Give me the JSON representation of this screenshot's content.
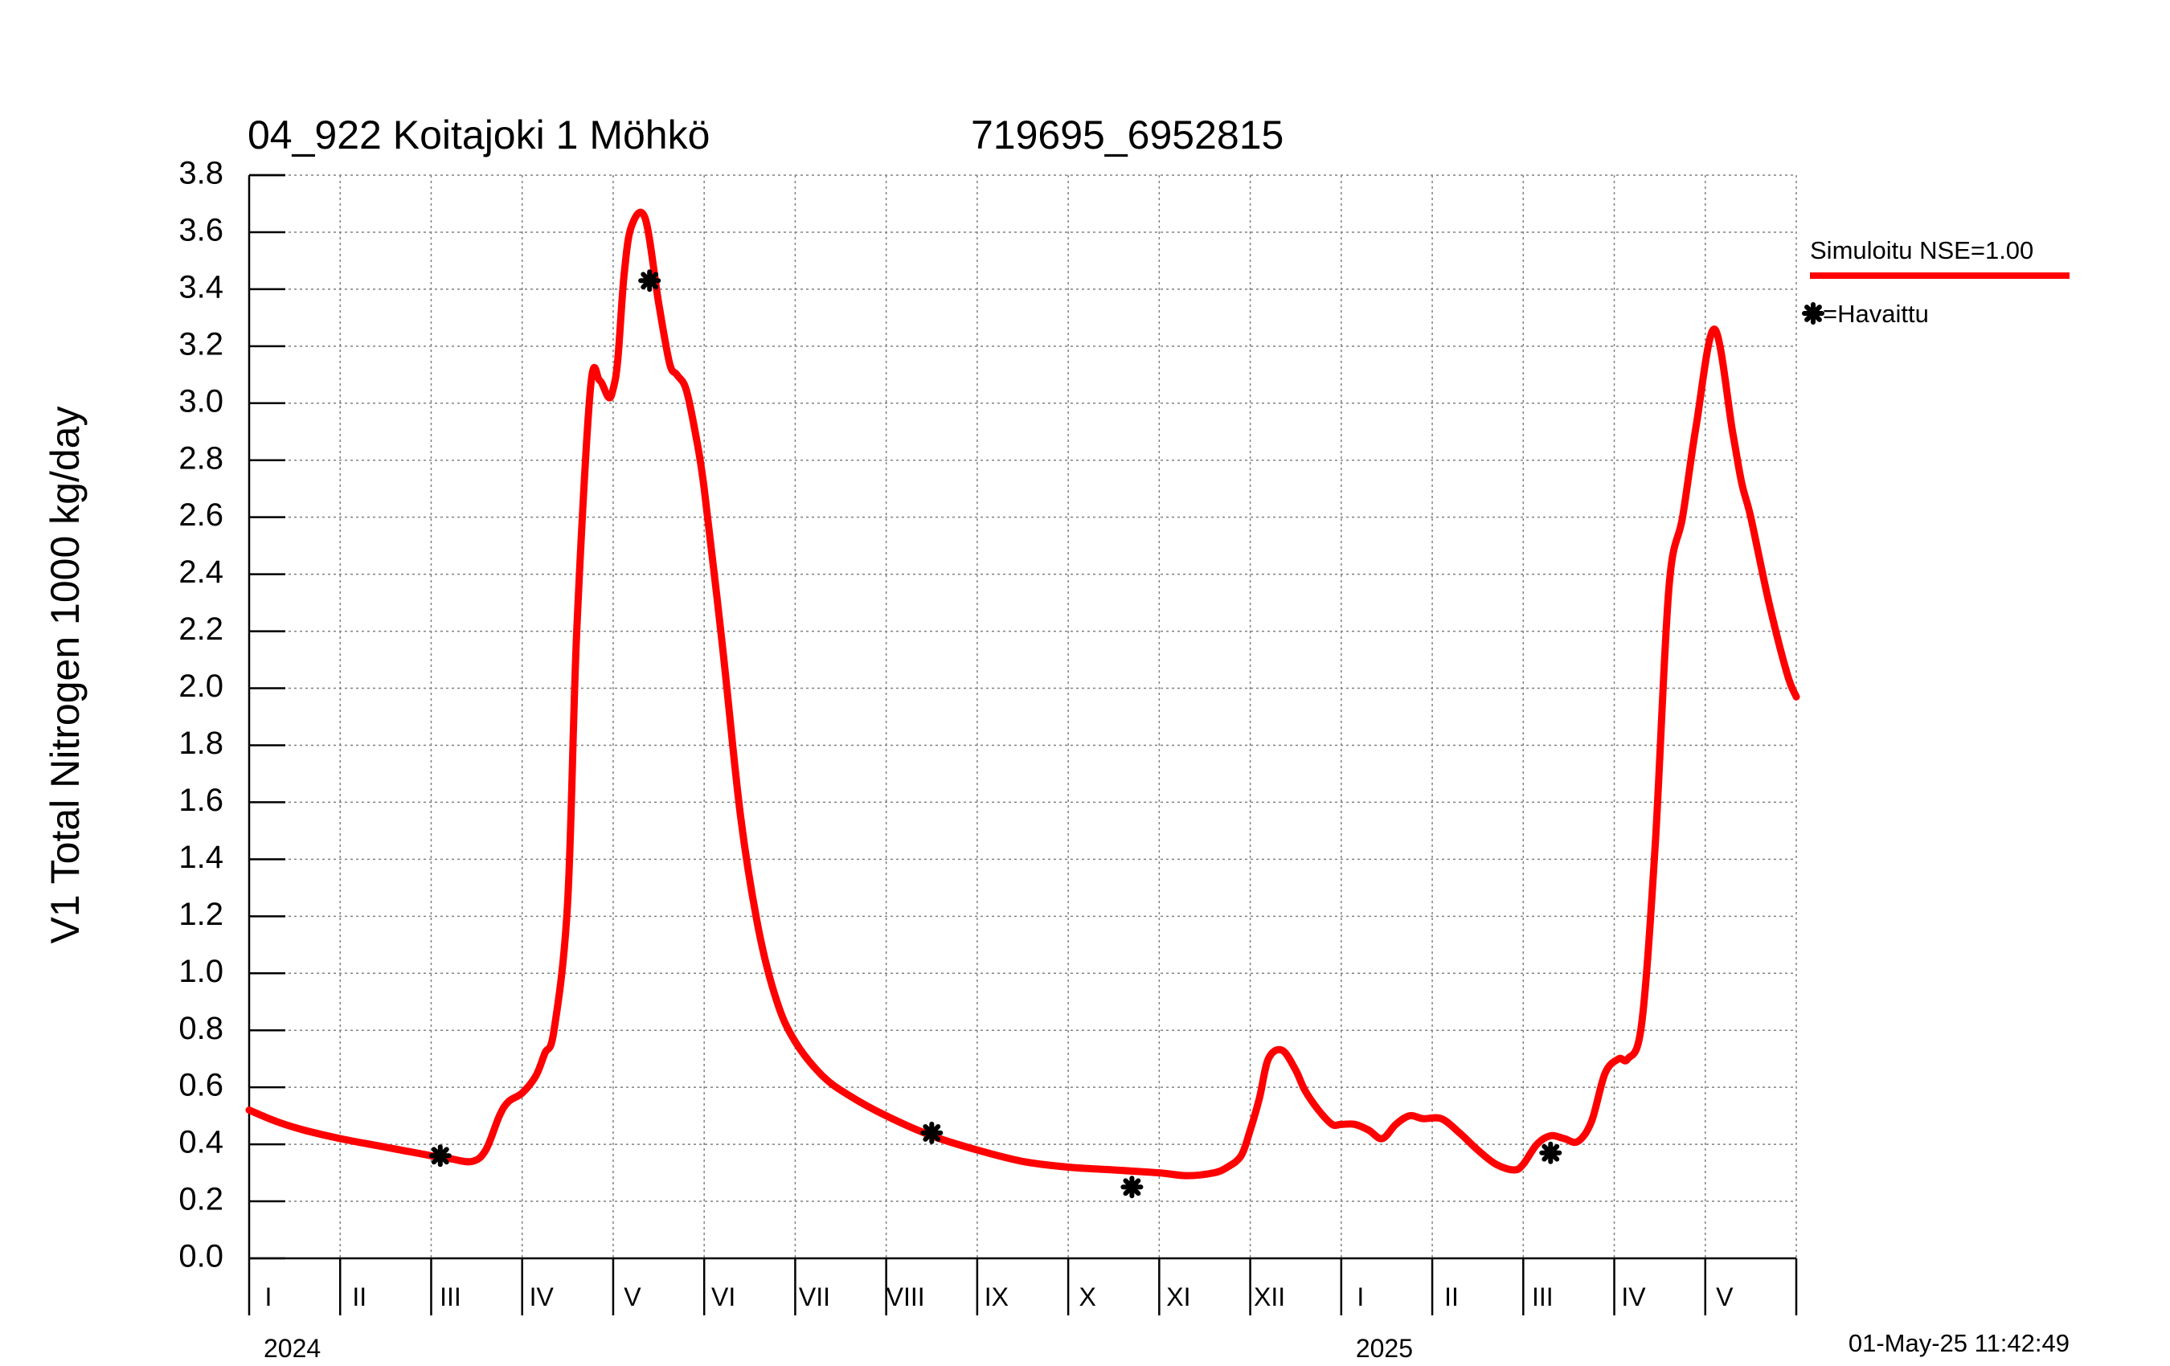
{
  "chart_data": {
    "type": "line",
    "title": "04_922 Koitajoki 1 Möhkö",
    "subtitle": "719695_6952815",
    "ylabel": "V1 Total Nitrogen 1000 kg/day",
    "xlabel": "",
    "ylim": [
      0.0,
      3.8
    ],
    "yticks": [
      "0.0",
      "0.2",
      "0.4",
      "0.6",
      "0.8",
      "1.0",
      "1.2",
      "1.4",
      "1.6",
      "1.8",
      "2.0",
      "2.2",
      "2.4",
      "2.6",
      "2.8",
      "3.0",
      "3.2",
      "3.4",
      "3.6",
      "3.8"
    ],
    "xlim_months": [
      0,
      17
    ],
    "months": [
      {
        "label": "I",
        "year_label": "2024"
      },
      {
        "label": "II"
      },
      {
        "label": "III"
      },
      {
        "label": "IV"
      },
      {
        "label": "V"
      },
      {
        "label": "VI"
      },
      {
        "label": "VII"
      },
      {
        "label": "VIII"
      },
      {
        "label": "IX"
      },
      {
        "label": "X"
      },
      {
        "label": "XI"
      },
      {
        "label": "XII"
      },
      {
        "label": "I",
        "year_label": "2025"
      },
      {
        "label": "II"
      },
      {
        "label": "III"
      },
      {
        "label": "IV"
      },
      {
        "label": "V"
      }
    ],
    "grid": true,
    "legend_position": "top-right",
    "series": [
      {
        "name": "Simuloitu NSE=1.00",
        "kind": "line",
        "color": "#ff0000",
        "x": [
          0.0,
          0.3,
          0.6,
          1.0,
          1.5,
          2.0,
          2.2,
          2.45,
          2.6,
          2.75,
          2.85,
          3.0,
          3.15,
          3.25,
          3.35,
          3.5,
          3.6,
          3.75,
          3.85,
          3.95,
          4.0,
          4.05,
          4.12,
          4.2,
          4.35,
          4.5,
          4.62,
          4.7,
          4.8,
          4.9,
          5.0,
          5.2,
          5.4,
          5.6,
          5.8,
          6.0,
          6.3,
          6.6,
          7.0,
          7.5,
          8.0,
          8.5,
          9.0,
          9.5,
          10.0,
          10.3,
          10.6,
          10.75,
          10.9,
          11.0,
          11.1,
          11.2,
          11.35,
          11.5,
          11.6,
          11.75,
          11.9,
          12.0,
          12.15,
          12.3,
          12.45,
          12.6,
          12.75,
          12.9,
          13.1,
          13.3,
          13.5,
          13.7,
          13.9,
          14.0,
          14.15,
          14.3,
          14.45,
          14.6,
          14.75,
          14.9,
          15.05,
          15.15,
          15.3,
          15.45,
          15.6,
          15.75,
          15.9,
          16.1,
          16.3,
          16.4,
          16.5,
          16.7,
          16.9,
          17.0
        ],
        "y": [
          0.52,
          0.48,
          0.45,
          0.42,
          0.39,
          0.36,
          0.35,
          0.34,
          0.38,
          0.5,
          0.55,
          0.58,
          0.64,
          0.72,
          0.8,
          1.25,
          2.2,
          3.05,
          3.08,
          3.02,
          3.05,
          3.15,
          3.45,
          3.62,
          3.65,
          3.35,
          3.14,
          3.1,
          3.05,
          2.9,
          2.7,
          2.15,
          1.55,
          1.15,
          0.9,
          0.76,
          0.64,
          0.57,
          0.5,
          0.43,
          0.38,
          0.34,
          0.32,
          0.31,
          0.3,
          0.29,
          0.3,
          0.32,
          0.36,
          0.45,
          0.56,
          0.7,
          0.73,
          0.66,
          0.59,
          0.52,
          0.47,
          0.47,
          0.47,
          0.45,
          0.42,
          0.47,
          0.5,
          0.49,
          0.49,
          0.44,
          0.38,
          0.33,
          0.31,
          0.33,
          0.4,
          0.43,
          0.42,
          0.41,
          0.48,
          0.65,
          0.7,
          0.7,
          0.82,
          1.45,
          2.35,
          2.6,
          2.92,
          3.26,
          2.9,
          2.72,
          2.6,
          2.3,
          2.05,
          1.97
        ]
      },
      {
        "name": "=Havaittu",
        "kind": "marker",
        "marker": "asterisk",
        "color": "#000000",
        "x": [
          2.1,
          4.4,
          7.5,
          9.7,
          14.3
        ],
        "y": [
          0.36,
          3.43,
          0.44,
          0.25,
          0.37
        ]
      }
    ]
  },
  "timestamp": "01-May-25 11:42:49"
}
